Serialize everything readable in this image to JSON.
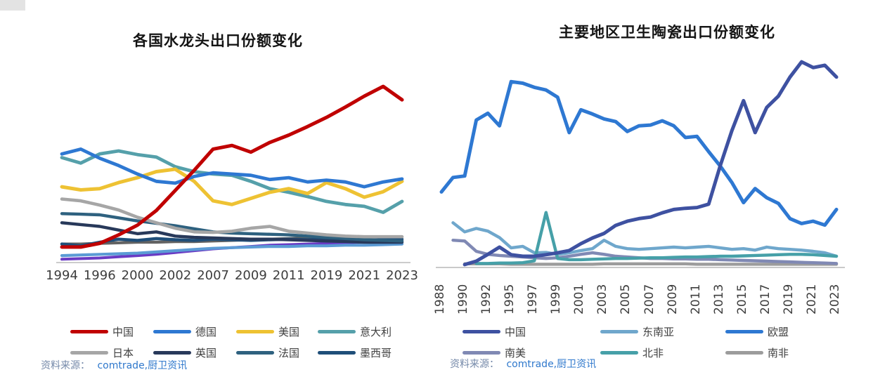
{
  "chart_data": [
    {
      "type": "line",
      "title": "各国水龙头出口份额变化",
      "x_labels": [
        "1994",
        "1996",
        "2000",
        "2002",
        "2007",
        "2009",
        "2011",
        "2019",
        "2021",
        "2023"
      ],
      "x_label_rotation": 0,
      "ylim": [
        0,
        33
      ],
      "ylabel": "",
      "xlabel": "",
      "grid": false,
      "legend_position": "bottom",
      "axis_color": "#cccccc",
      "source": {
        "prefix": "资料来源：",
        "text": "comtrade,厨卫资讯"
      },
      "legend": [
        {
          "key": "china",
          "label": "中国",
          "color": "#C00000"
        },
        {
          "key": "germany",
          "label": "德国",
          "color": "#2E78D2"
        },
        {
          "key": "usa",
          "label": "美国",
          "color": "#EEC233"
        },
        {
          "key": "italy",
          "label": "意大利",
          "color": "#55A0AA"
        },
        {
          "key": "japan",
          "label": "日本",
          "color": "#A6A6A6"
        },
        {
          "key": "uk",
          "label": "英国",
          "color": "#28395A"
        },
        {
          "key": "france",
          "label": "法国",
          "color": "#2E617F"
        },
        {
          "key": "mexico",
          "label": "墨西哥",
          "color": "#1F4E79"
        }
      ],
      "series": [
        {
          "key": "extra-purple",
          "name": "",
          "color": "#6A3BC4",
          "width": 4,
          "values": [
            0.2,
            0.3,
            0.4,
            0.6,
            0.8,
            1.0,
            1.3,
            1.6,
            1.9,
            2.1,
            2.3,
            2.5,
            2.6,
            2.7,
            2.8,
            2.9,
            3.0,
            3.1,
            3.2
          ]
        },
        {
          "key": "extra-lightblue",
          "name": "",
          "color": "#5B9BD5",
          "width": 4.2,
          "values": [
            0.8,
            0.9,
            1.0,
            1.1,
            1.2,
            1.4,
            1.6,
            1.8,
            2.0,
            2.1,
            2.2,
            2.3,
            2.3,
            2.4,
            2.4,
            2.5,
            2.5,
            2.6,
            2.7
          ]
        },
        {
          "key": "extra-darkgray",
          "name": "",
          "color": "#636363",
          "width": 4.2,
          "values": [
            2.7,
            2.7,
            2.8,
            2.9,
            3.0,
            3.0,
            3.1,
            3.1,
            3.2,
            3.3,
            3.4,
            3.5,
            3.6,
            3.7,
            3.7,
            3.8,
            3.8,
            3.9,
            3.9
          ]
        },
        {
          "key": "mexico",
          "name": "墨西哥",
          "color": "#1F4E79",
          "width": 4.4,
          "values": [
            2.7,
            2.4,
            3.0,
            3.5,
            3.3,
            3.6,
            3.4,
            3.3,
            3.5,
            3.4,
            3.3,
            3.4,
            3.5,
            3.4,
            3.5,
            3.4,
            3.3,
            3.4,
            3.5
          ]
        },
        {
          "key": "uk",
          "name": "英国",
          "color": "#28395A",
          "width": 4.4,
          "values": [
            6.2,
            5.9,
            5.6,
            5.0,
            4.4,
            4.7,
            4.0,
            3.8,
            3.7,
            3.6,
            3.5,
            3.5,
            3.4,
            3.3,
            3.2,
            3.1,
            3.0,
            3.0,
            3.0
          ]
        },
        {
          "key": "france",
          "name": "法国",
          "color": "#2E617F",
          "width": 4.4,
          "values": [
            7.7,
            7.6,
            7.5,
            7.0,
            6.5,
            6.1,
            5.7,
            5.2,
            4.7,
            4.5,
            4.4,
            4.3,
            4.2,
            4.0,
            3.8,
            3.6,
            3.4,
            3.3,
            3.2
          ]
        },
        {
          "key": "japan",
          "name": "日本",
          "color": "#A6A6A6",
          "width": 4.6,
          "values": [
            10.1,
            9.8,
            9.1,
            8.3,
            7.1,
            6.2,
            5.3,
            4.7,
            4.6,
            4.8,
            5.3,
            5.6,
            4.8,
            4.5,
            4.2,
            4.0,
            3.9,
            3.9,
            3.9
          ]
        },
        {
          "key": "italy",
          "name": "意大利",
          "color": "#55A0AA",
          "width": 4.8,
          "values": [
            16.9,
            16.0,
            17.5,
            18.0,
            17.4,
            17.0,
            15.4,
            14.6,
            14.2,
            14.0,
            13.0,
            11.8,
            11.2,
            10.5,
            9.7,
            9.2,
            8.9,
            7.9,
            9.7
          ]
        },
        {
          "key": "usa",
          "name": "美国",
          "color": "#EEC233",
          "width": 5,
          "values": [
            12.1,
            11.6,
            11.8,
            12.8,
            13.6,
            14.6,
            15.0,
            13.0,
            9.8,
            9.2,
            10.2,
            11.2,
            11.8,
            11.0,
            12.8,
            11.8,
            10.4,
            11.3,
            13.0
          ]
        },
        {
          "key": "germany",
          "name": "德国",
          "color": "#2E78D2",
          "width": 4.8,
          "values": [
            17.5,
            18.3,
            16.8,
            15.6,
            14.2,
            13.0,
            12.7,
            13.8,
            14.4,
            14.2,
            14.0,
            13.3,
            13.6,
            12.9,
            13.2,
            12.9,
            12.1,
            12.9,
            13.4
          ]
        },
        {
          "key": "china",
          "name": "中国",
          "color": "#C00000",
          "width": 5,
          "values": [
            2.2,
            2.2,
            2.8,
            4.2,
            5.8,
            8.2,
            11.5,
            14.8,
            18.3,
            18.9,
            17.8,
            19.4,
            20.6,
            22.0,
            23.5,
            25.2,
            27.0,
            28.6,
            26.4
          ]
        }
      ]
    },
    {
      "type": "line",
      "title": "主要地区卫生陶瓷出口份额变化",
      "x_labels": [
        "1988",
        "1990",
        "1992",
        "1995",
        "1997",
        "1999",
        "2001",
        "2003",
        "2005",
        "2007",
        "2009",
        "2011",
        "2013",
        "2015",
        "2017",
        "2019",
        "2021",
        "2023"
      ],
      "x_label_rotation": 90,
      "ylim": [
        0,
        55
      ],
      "ylabel": "",
      "xlabel": "",
      "grid": false,
      "legend_position": "bottom",
      "axis_color": "#c9c9c9",
      "source": {
        "prefix": "资料来源：",
        "text": "comtrade,厨卫资讯"
      },
      "legend": [
        {
          "key": "china",
          "label": "中国",
          "color": "#3E51A1"
        },
        {
          "key": "se-asia",
          "label": "东南亚",
          "color": "#6FA7CC"
        },
        {
          "key": "eu",
          "label": "欧盟",
          "color": "#2E78D2"
        },
        {
          "key": "south-america",
          "label": "南美",
          "color": "#8089B4"
        },
        {
          "key": "north-africa",
          "label": "北非",
          "color": "#46A0A8"
        },
        {
          "key": "south-africa",
          "label": "南非",
          "color": "#9C9C9C"
        }
      ],
      "series": [
        {
          "key": "south-africa",
          "name": "南非",
          "color": "#9C9C9C",
          "width": 4.4,
          "values": [
            null,
            null,
            0.4,
            0.4,
            0.4,
            0.4,
            0.3,
            0.3,
            0.3,
            0.3,
            0.3,
            0.3,
            0.3,
            0.3,
            0.4,
            0.4,
            0.4,
            0.4,
            0.4,
            0.4,
            0.4,
            0.4,
            0.3,
            0.3,
            0.3,
            0.3,
            0.3,
            0.3,
            0.3,
            0.3,
            0.3,
            0.3,
            0.3,
            0.3,
            0.3
          ]
        },
        {
          "key": "south-america",
          "name": "南美",
          "color": "#8089B4",
          "width": 4.4,
          "values": [
            null,
            6.6,
            6.4,
            3.7,
            2.9,
            2.6,
            2.4,
            2.2,
            2.0,
            1.8,
            2.0,
            2.4,
            2.9,
            3.3,
            2.9,
            2.4,
            2.2,
            2.0,
            1.8,
            1.8,
            1.7,
            1.7,
            1.6,
            1.6,
            1.5,
            1.4,
            1.3,
            1.2,
            1.1,
            1.0,
            0.9,
            0.8,
            0.7,
            0.6,
            0.5
          ]
        },
        {
          "key": "se-asia",
          "name": "东南亚",
          "color": "#6FA7CC",
          "width": 4.4,
          "values": [
            null,
            11.2,
            8.8,
            9.7,
            9.0,
            7.3,
            4.6,
            5.0,
            3.3,
            3.4,
            2.9,
            3.3,
            3.9,
            4.4,
            6.6,
            5.0,
            4.4,
            4.2,
            4.4,
            4.6,
            4.8,
            4.6,
            4.8,
            5.0,
            4.6,
            4.2,
            4.4,
            4.0,
            4.8,
            4.4,
            4.2,
            4.0,
            3.7,
            3.3,
            2.4
          ]
        },
        {
          "key": "north-africa",
          "name": "北非",
          "color": "#46A0A8",
          "width": 4.4,
          "values": [
            null,
            null,
            null,
            0.5,
            0.5,
            0.6,
            0.6,
            0.7,
            1.2,
            13.9,
            1.8,
            1.5,
            1.5,
            1.6,
            1.7,
            1.8,
            1.8,
            1.9,
            2.0,
            2.0,
            2.1,
            2.2,
            2.2,
            2.3,
            2.4,
            2.4,
            2.5,
            2.6,
            2.7,
            2.8,
            2.9,
            2.9,
            2.8,
            2.6,
            2.4
          ]
        },
        {
          "key": "eu",
          "name": "欧盟",
          "color": "#2E78D2",
          "width": 5,
          "values": [
            19.3,
            23.1,
            23.5,
            38.2,
            40.0,
            36.7,
            48.3,
            47.9,
            46.8,
            46.1,
            44.2,
            34.9,
            40.9,
            39.8,
            38.5,
            37.8,
            35.2,
            36.7,
            36.9,
            38.0,
            36.7,
            33.6,
            33.9,
            29.9,
            26.1,
            21.8,
            16.5,
            20.2,
            17.8,
            16.3,
            12.3,
            11.0,
            11.6,
            10.6,
            14.7
          ]
        },
        {
          "key": "china",
          "name": "中国",
          "color": "#3E51A1",
          "width": 5,
          "values": [
            null,
            null,
            0.2,
            1.1,
            2.9,
            4.8,
            2.8,
            2.4,
            2.4,
            2.8,
            3.3,
            3.9,
            5.7,
            7.2,
            8.4,
            10.5,
            11.6,
            12.3,
            12.7,
            13.8,
            14.7,
            15.0,
            15.2,
            16.1,
            26.2,
            35.4,
            43.3,
            34.9,
            41.5,
            44.5,
            49.5,
            53.5,
            52.0,
            52.6,
            49.5
          ]
        }
      ]
    }
  ]
}
